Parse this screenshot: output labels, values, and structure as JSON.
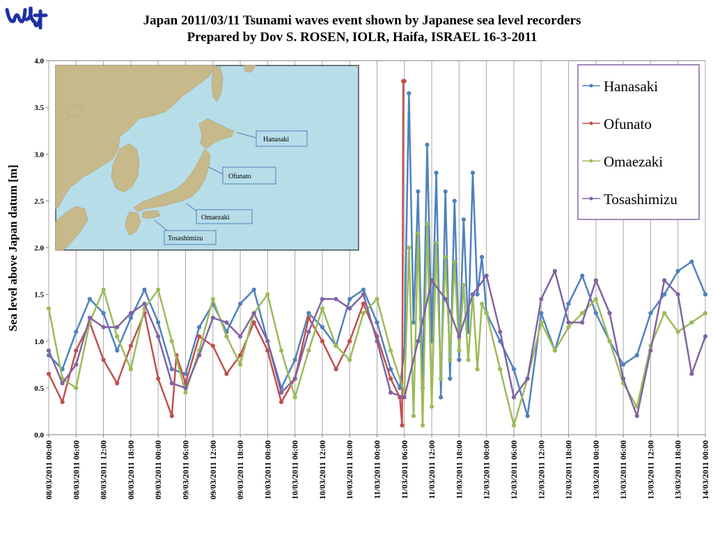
{
  "page": {
    "title_line1": "Japan 2011/03/11 Tsunami  waves event shown  by Japanese sea level recorders",
    "title_line2": "Prepared  by Dov S. ROSEN, IOLR, Haifa, ISRAEL 16-3-2011"
  },
  "colors": {
    "Hanasaki": "#4f81bd",
    "Ofunato": "#c0504d",
    "Omaezaki": "#9bbb59",
    "Tosashimizu": "#8064a2",
    "logo": "#1f2fa8",
    "map_sea": "#b7dde8",
    "map_land": "#c8b98a"
  },
  "inset_map": {
    "labels": [
      "Hanasaki",
      "Ofunato",
      "Omaezaki",
      "Tosashimizu"
    ]
  },
  "chart_data": {
    "type": "line",
    "title": "Japan 2011/03/11 Tsunami  waves event shown  by Japanese sea level recorders",
    "subtitle": "Prepared  by Dov S. ROSEN, IOLR, Haifa, ISRAEL 16-3-2011",
    "xlabel": "",
    "ylabel": "Sea level above Japan datum [m]",
    "ylim": [
      0,
      4
    ],
    "yticks": [
      "0.0",
      "0.5",
      "1.0",
      "1.5",
      "2.0",
      "2.5",
      "3.0",
      "3.5",
      "4.0"
    ],
    "xlim_hours": [
      0,
      144
    ],
    "xticks": [
      "08/03/2011 00:00",
      "08/03/2011 06:00",
      "08/03/2011 12:00",
      "08/03/2011 18:00",
      "09/03/2011 00:00",
      "09/03/2011 06:00",
      "09/03/2011 12:00",
      "09/03/2011 18:00",
      "10/03/2011 00:00",
      "10/03/2011 06:00",
      "10/03/2011 12:00",
      "10/03/2011 18:00",
      "11/03/2011 00:00",
      "11/03/2011 06:00",
      "11/03/2011 12:00",
      "11/03/2011 18:00",
      "12/03/2011 00:00",
      "12/03/2011 06:00",
      "12/03/2011 12:00",
      "12/03/2011 18:00",
      "13/03/2011 00:00",
      "13/03/2011 06:00",
      "13/03/2011 12:00",
      "13/03/2011 18:00",
      "14/03/2011 00:00"
    ],
    "grid": "vertical",
    "legend_position": "top-right",
    "tsunami_arrival": "11/03/2011 06:00",
    "series": [
      {
        "name": "Hanasaki",
        "x": [
          "08/03/2011 00:00",
          "08/03/2011 03:00",
          "08/03/2011 06:00",
          "08/03/2011 09:00",
          "08/03/2011 12:00",
          "08/03/2011 15:00",
          "08/03/2011 18:00",
          "08/03/2011 21:00",
          "09/03/2011 00:00",
          "09/03/2011 03:00",
          "09/03/2011 06:00",
          "09/03/2011 09:00",
          "09/03/2011 12:00",
          "09/03/2011 15:00",
          "09/03/2011 18:00",
          "09/03/2011 21:00",
          "10/03/2011 00:00",
          "10/03/2011 03:00",
          "10/03/2011 06:00",
          "10/03/2011 09:00",
          "10/03/2011 12:00",
          "10/03/2011 15:00",
          "10/03/2011 18:00",
          "10/03/2011 21:00",
          "11/03/2011 00:00",
          "11/03/2011 03:00",
          "11/03/2011 05:00",
          "11/03/2011 06:00",
          "11/03/2011 07:00",
          "11/03/2011 08:00",
          "11/03/2011 09:00",
          "11/03/2011 10:00",
          "11/03/2011 11:00",
          "11/03/2011 12:00",
          "11/03/2011 13:00",
          "11/03/2011 14:00",
          "11/03/2011 15:00",
          "11/03/2011 16:00",
          "11/03/2011 17:00",
          "11/03/2011 18:00",
          "11/03/2011 19:00",
          "11/03/2011 20:00",
          "11/03/2011 21:00",
          "11/03/2011 22:00",
          "11/03/2011 23:00",
          "12/03/2011 00:00",
          "12/03/2011 03:00",
          "12/03/2011 06:00",
          "12/03/2011 09:00",
          "12/03/2011 12:00",
          "12/03/2011 15:00",
          "12/03/2011 18:00",
          "12/03/2011 21:00",
          "13/03/2011 00:00",
          "13/03/2011 03:00",
          "13/03/2011 06:00",
          "13/03/2011 09:00",
          "13/03/2011 12:00",
          "13/03/2011 15:00",
          "13/03/2011 18:00",
          "13/03/2011 21:00",
          "14/03/2011 00:00"
        ],
        "y": [
          0.85,
          0.7,
          1.1,
          1.45,
          1.3,
          0.9,
          1.25,
          1.55,
          1.2,
          0.7,
          0.65,
          1.15,
          1.4,
          1.1,
          1.4,
          1.55,
          1.0,
          0.5,
          0.8,
          1.3,
          1.15,
          0.95,
          1.45,
          1.55,
          1.2,
          0.7,
          0.5,
          0.9,
          3.65,
          1.2,
          2.6,
          0.5,
          3.1,
          1.0,
          2.8,
          0.4,
          2.6,
          0.6,
          2.5,
          0.8,
          2.3,
          1.1,
          2.8,
          1.5,
          1.9,
          1.3,
          1.0,
          0.7,
          0.2,
          1.3,
          0.9,
          1.4,
          1.7,
          1.3,
          1.0,
          0.75,
          0.85,
          1.3,
          1.5,
          1.75,
          1.85,
          1.5
        ]
      },
      {
        "name": "Ofunato",
        "x": [
          "08/03/2011 00:00",
          "08/03/2011 03:00",
          "08/03/2011 06:00",
          "08/03/2011 09:00",
          "08/03/2011 12:00",
          "08/03/2011 15:00",
          "08/03/2011 18:00",
          "08/03/2011 21:00",
          "09/03/2011 00:00",
          "09/03/2011 03:00",
          "09/03/2011 04:00",
          "09/03/2011 06:00",
          "09/03/2011 09:00",
          "09/03/2011 12:00",
          "09/03/2011 15:00",
          "09/03/2011 18:00",
          "09/03/2011 21:00",
          "10/03/2011 00:00",
          "10/03/2011 03:00",
          "10/03/2011 06:00",
          "10/03/2011 09:00",
          "10/03/2011 12:00",
          "10/03/2011 15:00",
          "10/03/2011 18:00",
          "10/03/2011 21:00",
          "11/03/2011 00:00",
          "11/03/2011 03:00",
          "11/03/2011 05:00",
          "11/03/2011 05:30",
          "11/03/2011 05:45",
          "11/03/2011 06:00"
        ],
        "y": [
          0.65,
          0.35,
          0.9,
          1.2,
          0.8,
          0.55,
          0.95,
          1.3,
          0.6,
          0.2,
          0.85,
          0.55,
          1.05,
          0.95,
          0.65,
          0.85,
          1.2,
          0.9,
          0.35,
          0.6,
          1.25,
          1.0,
          0.7,
          1.0,
          1.4,
          1.05,
          0.6,
          0.4,
          0.1,
          3.78,
          3.78
        ]
      },
      {
        "name": "Omaezaki",
        "x": [
          "08/03/2011 00:00",
          "08/03/2011 03:00",
          "08/03/2011 06:00",
          "08/03/2011 09:00",
          "08/03/2011 12:00",
          "08/03/2011 15:00",
          "08/03/2011 18:00",
          "08/03/2011 21:00",
          "09/03/2011 00:00",
          "09/03/2011 03:00",
          "09/03/2011 06:00",
          "09/03/2011 09:00",
          "09/03/2011 12:00",
          "09/03/2011 15:00",
          "09/03/2011 18:00",
          "09/03/2011 21:00",
          "10/03/2011 00:00",
          "10/03/2011 03:00",
          "10/03/2011 06:00",
          "10/03/2011 09:00",
          "10/03/2011 12:00",
          "10/03/2011 15:00",
          "10/03/2011 18:00",
          "10/03/2011 21:00",
          "11/03/2011 00:00",
          "11/03/2011 03:00",
          "11/03/2011 06:00",
          "11/03/2011 07:00",
          "11/03/2011 08:00",
          "11/03/2011 09:00",
          "11/03/2011 10:00",
          "11/03/2011 11:00",
          "11/03/2011 12:00",
          "11/03/2011 13:00",
          "11/03/2011 14:00",
          "11/03/2011 15:00",
          "11/03/2011 16:00",
          "11/03/2011 17:00",
          "11/03/2011 18:00",
          "11/03/2011 19:00",
          "11/03/2011 20:00",
          "11/03/2011 21:00",
          "11/03/2011 22:00",
          "11/03/2011 23:00",
          "12/03/2011 00:00",
          "12/03/2011 03:00",
          "12/03/2011 06:00",
          "12/03/2011 09:00",
          "12/03/2011 12:00",
          "12/03/2011 15:00",
          "12/03/2011 18:00",
          "12/03/2011 21:00",
          "13/03/2011 00:00",
          "13/03/2011 03:00",
          "13/03/2011 06:00",
          "13/03/2011 09:00",
          "13/03/2011 12:00",
          "13/03/2011 15:00",
          "13/03/2011 18:00",
          "13/03/2011 21:00",
          "14/03/2011 00:00"
        ],
        "y": [
          1.35,
          0.6,
          0.5,
          1.2,
          1.55,
          1.05,
          0.7,
          1.35,
          1.55,
          1.0,
          0.45,
          0.9,
          1.45,
          1.05,
          0.75,
          1.3,
          1.5,
          0.9,
          0.4,
          0.9,
          1.35,
          0.95,
          0.8,
          1.3,
          1.45,
          0.9,
          0.45,
          2.0,
          0.2,
          2.15,
          0.1,
          2.25,
          0.3,
          2.05,
          0.6,
          1.9,
          0.8,
          1.85,
          0.9,
          1.6,
          0.8,
          1.5,
          0.7,
          1.4,
          1.3,
          0.7,
          0.1,
          0.6,
          1.2,
          0.9,
          1.15,
          1.3,
          1.45,
          1.0,
          0.55,
          0.3,
          0.95,
          1.3,
          1.1,
          1.2,
          1.3
        ]
      },
      {
        "name": "Tosashimizu",
        "x": [
          "08/03/2011 00:00",
          "08/03/2011 03:00",
          "08/03/2011 06:00",
          "08/03/2011 09:00",
          "08/03/2011 12:00",
          "08/03/2011 15:00",
          "08/03/2011 18:00",
          "08/03/2011 21:00",
          "09/03/2011 00:00",
          "09/03/2011 03:00",
          "09/03/2011 06:00",
          "09/03/2011 09:00",
          "09/03/2011 12:00",
          "09/03/2011 15:00",
          "09/03/2011 18:00",
          "09/03/2011 21:00",
          "10/03/2011 00:00",
          "10/03/2011 03:00",
          "10/03/2011 06:00",
          "10/03/2011 09:00",
          "10/03/2011 12:00",
          "10/03/2011 15:00",
          "10/03/2011 18:00",
          "10/03/2011 21:00",
          "11/03/2011 00:00",
          "11/03/2011 03:00",
          "11/03/2011 06:00",
          "11/03/2011 09:00",
          "11/03/2011 12:00",
          "11/03/2011 15:00",
          "11/03/2011 18:00",
          "11/03/2011 21:00",
          "12/03/2011 00:00",
          "12/03/2011 03:00",
          "12/03/2011 06:00",
          "12/03/2011 09:00",
          "12/03/2011 12:00",
          "12/03/2011 15:00",
          "12/03/2011 18:00",
          "12/03/2011 21:00",
          "13/03/2011 00:00",
          "13/03/2011 03:00",
          "13/03/2011 06:00",
          "13/03/2011 09:00",
          "13/03/2011 12:00",
          "13/03/2011 15:00",
          "13/03/2011 18:00",
          "13/03/2011 21:00",
          "14/03/2011 00:00"
        ],
        "y": [
          0.9,
          0.55,
          0.75,
          1.25,
          1.15,
          1.15,
          1.3,
          1.4,
          1.05,
          0.55,
          0.5,
          0.85,
          1.25,
          1.2,
          1.05,
          1.3,
          1.0,
          0.45,
          0.6,
          1.1,
          1.45,
          1.45,
          1.35,
          1.5,
          1.0,
          0.45,
          0.4,
          1.0,
          1.65,
          1.45,
          1.05,
          1.5,
          1.7,
          1.1,
          0.4,
          0.6,
          1.45,
          1.75,
          1.2,
          1.2,
          1.65,
          1.3,
          0.6,
          0.2,
          0.9,
          1.65,
          1.5,
          0.65,
          1.05
        ]
      }
    ]
  }
}
